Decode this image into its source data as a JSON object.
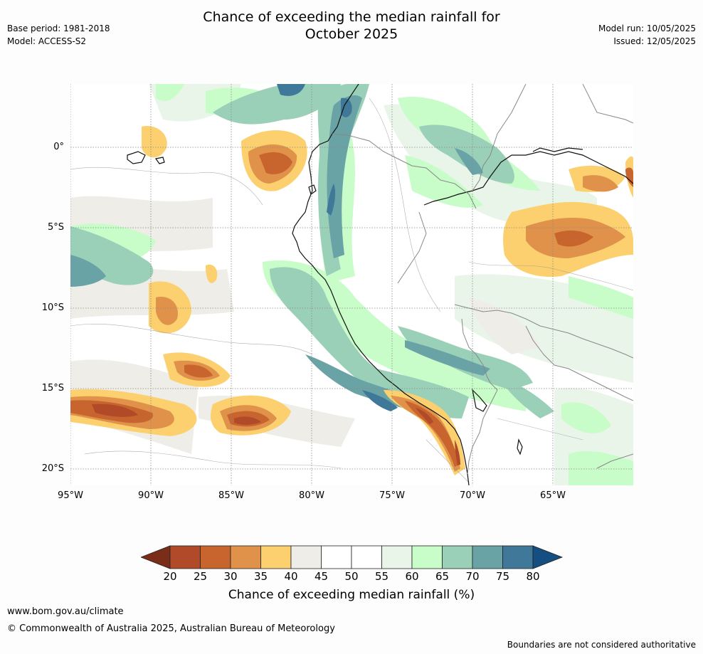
{
  "title_line1": "Chance of exceeding the median rainfall for",
  "title_line2": "October 2025",
  "base_period": "Base period: 1981-2018",
  "model": "Model: ACCESS-S2",
  "model_run": "Model run: 10/05/2025",
  "issued": "Issued: 12/05/2025",
  "lat_labels": [
    "0°",
    "5°S",
    "10°S",
    "15°S",
    "20°S"
  ],
  "lon_labels": [
    "95°W",
    "90°W",
    "85°W",
    "80°W",
    "75°W",
    "70°W",
    "65°W"
  ],
  "colorbar": {
    "ticks": [
      "20",
      "25",
      "30",
      "35",
      "40",
      "45",
      "50",
      "55",
      "60",
      "65",
      "70",
      "75",
      "80"
    ],
    "colors": [
      "#7a2e1a",
      "#b04a28",
      "#c8642e",
      "#e0924a",
      "#fcd06e",
      "#efede7",
      "#ffffff",
      "#ffffff",
      "#eaf5ea",
      "#c8fcc8",
      "#9bd0b8",
      "#6aa3a6",
      "#3f7898",
      "#154e80"
    ],
    "label": "Chance of exceeding median rainfall (%)"
  },
  "footer_url": "www.bom.gov.au/climate",
  "copyright": "© Commonwealth of Australia 2025, Australian Bureau of Meteorology",
  "disclaimer": "Boundaries are not considered authoritative"
}
